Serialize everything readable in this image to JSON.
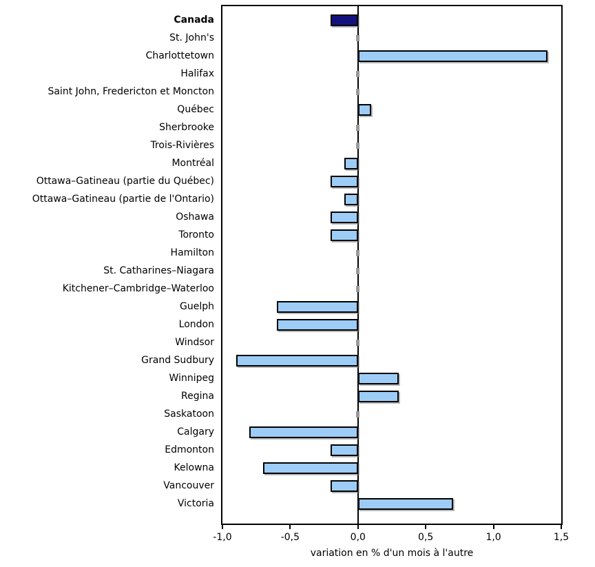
{
  "chart_data": {
    "type": "bar",
    "orientation": "horizontal",
    "title": "",
    "xlabel": "variation en % d'un mois à l'autre",
    "xlim": [
      -1.0,
      1.5
    ],
    "x_tick_values": [
      -1.0,
      -0.5,
      0.0,
      0.5,
      1.0,
      1.5
    ],
    "x_tick_labels": [
      "-1,0",
      "-0,5",
      "0,0",
      "0,5",
      "1,0",
      "1,5"
    ],
    "grid": false,
    "legend": "none",
    "highlight_category": "Canada",
    "categories": [
      "Canada",
      "St. John's",
      "Charlottetown",
      "Halifax",
      "Saint John, Fredericton et Moncton",
      "Québec",
      "Sherbrooke",
      "Trois-Rivières",
      "Montréal",
      "Ottawa–Gatineau (partie du Québec)",
      "Ottawa–Gatineau (partie de l'Ontario)",
      "Oshawa",
      "Toronto",
      "Hamilton",
      "St. Catharines–Niagara",
      "Kitchener–Cambridge–Waterloo",
      "Guelph",
      "London",
      "Windsor",
      "Grand Sudbury",
      "Winnipeg",
      "Regina",
      "Saskatoon",
      "Calgary",
      "Edmonton",
      "Kelowna",
      "Vancouver",
      "Victoria"
    ],
    "values": [
      -0.2,
      0.0,
      1.4,
      0.0,
      0.0,
      0.1,
      0.0,
      0.0,
      -0.1,
      -0.2,
      -0.1,
      -0.2,
      -0.2,
      0.0,
      0.0,
      0.0,
      -0.6,
      -0.6,
      0.0,
      -0.9,
      0.3,
      0.3,
      0.0,
      -0.8,
      -0.2,
      -0.7,
      -0.2,
      0.7
    ],
    "colors": {
      "highlight_bar": "#12127E",
      "city_bar": "#9DCDF7",
      "bar_border": "#000000",
      "axis": "#000000",
      "zero_mark": "#9a9a9a",
      "background": "#FFFFFF",
      "text": "#000000"
    }
  }
}
